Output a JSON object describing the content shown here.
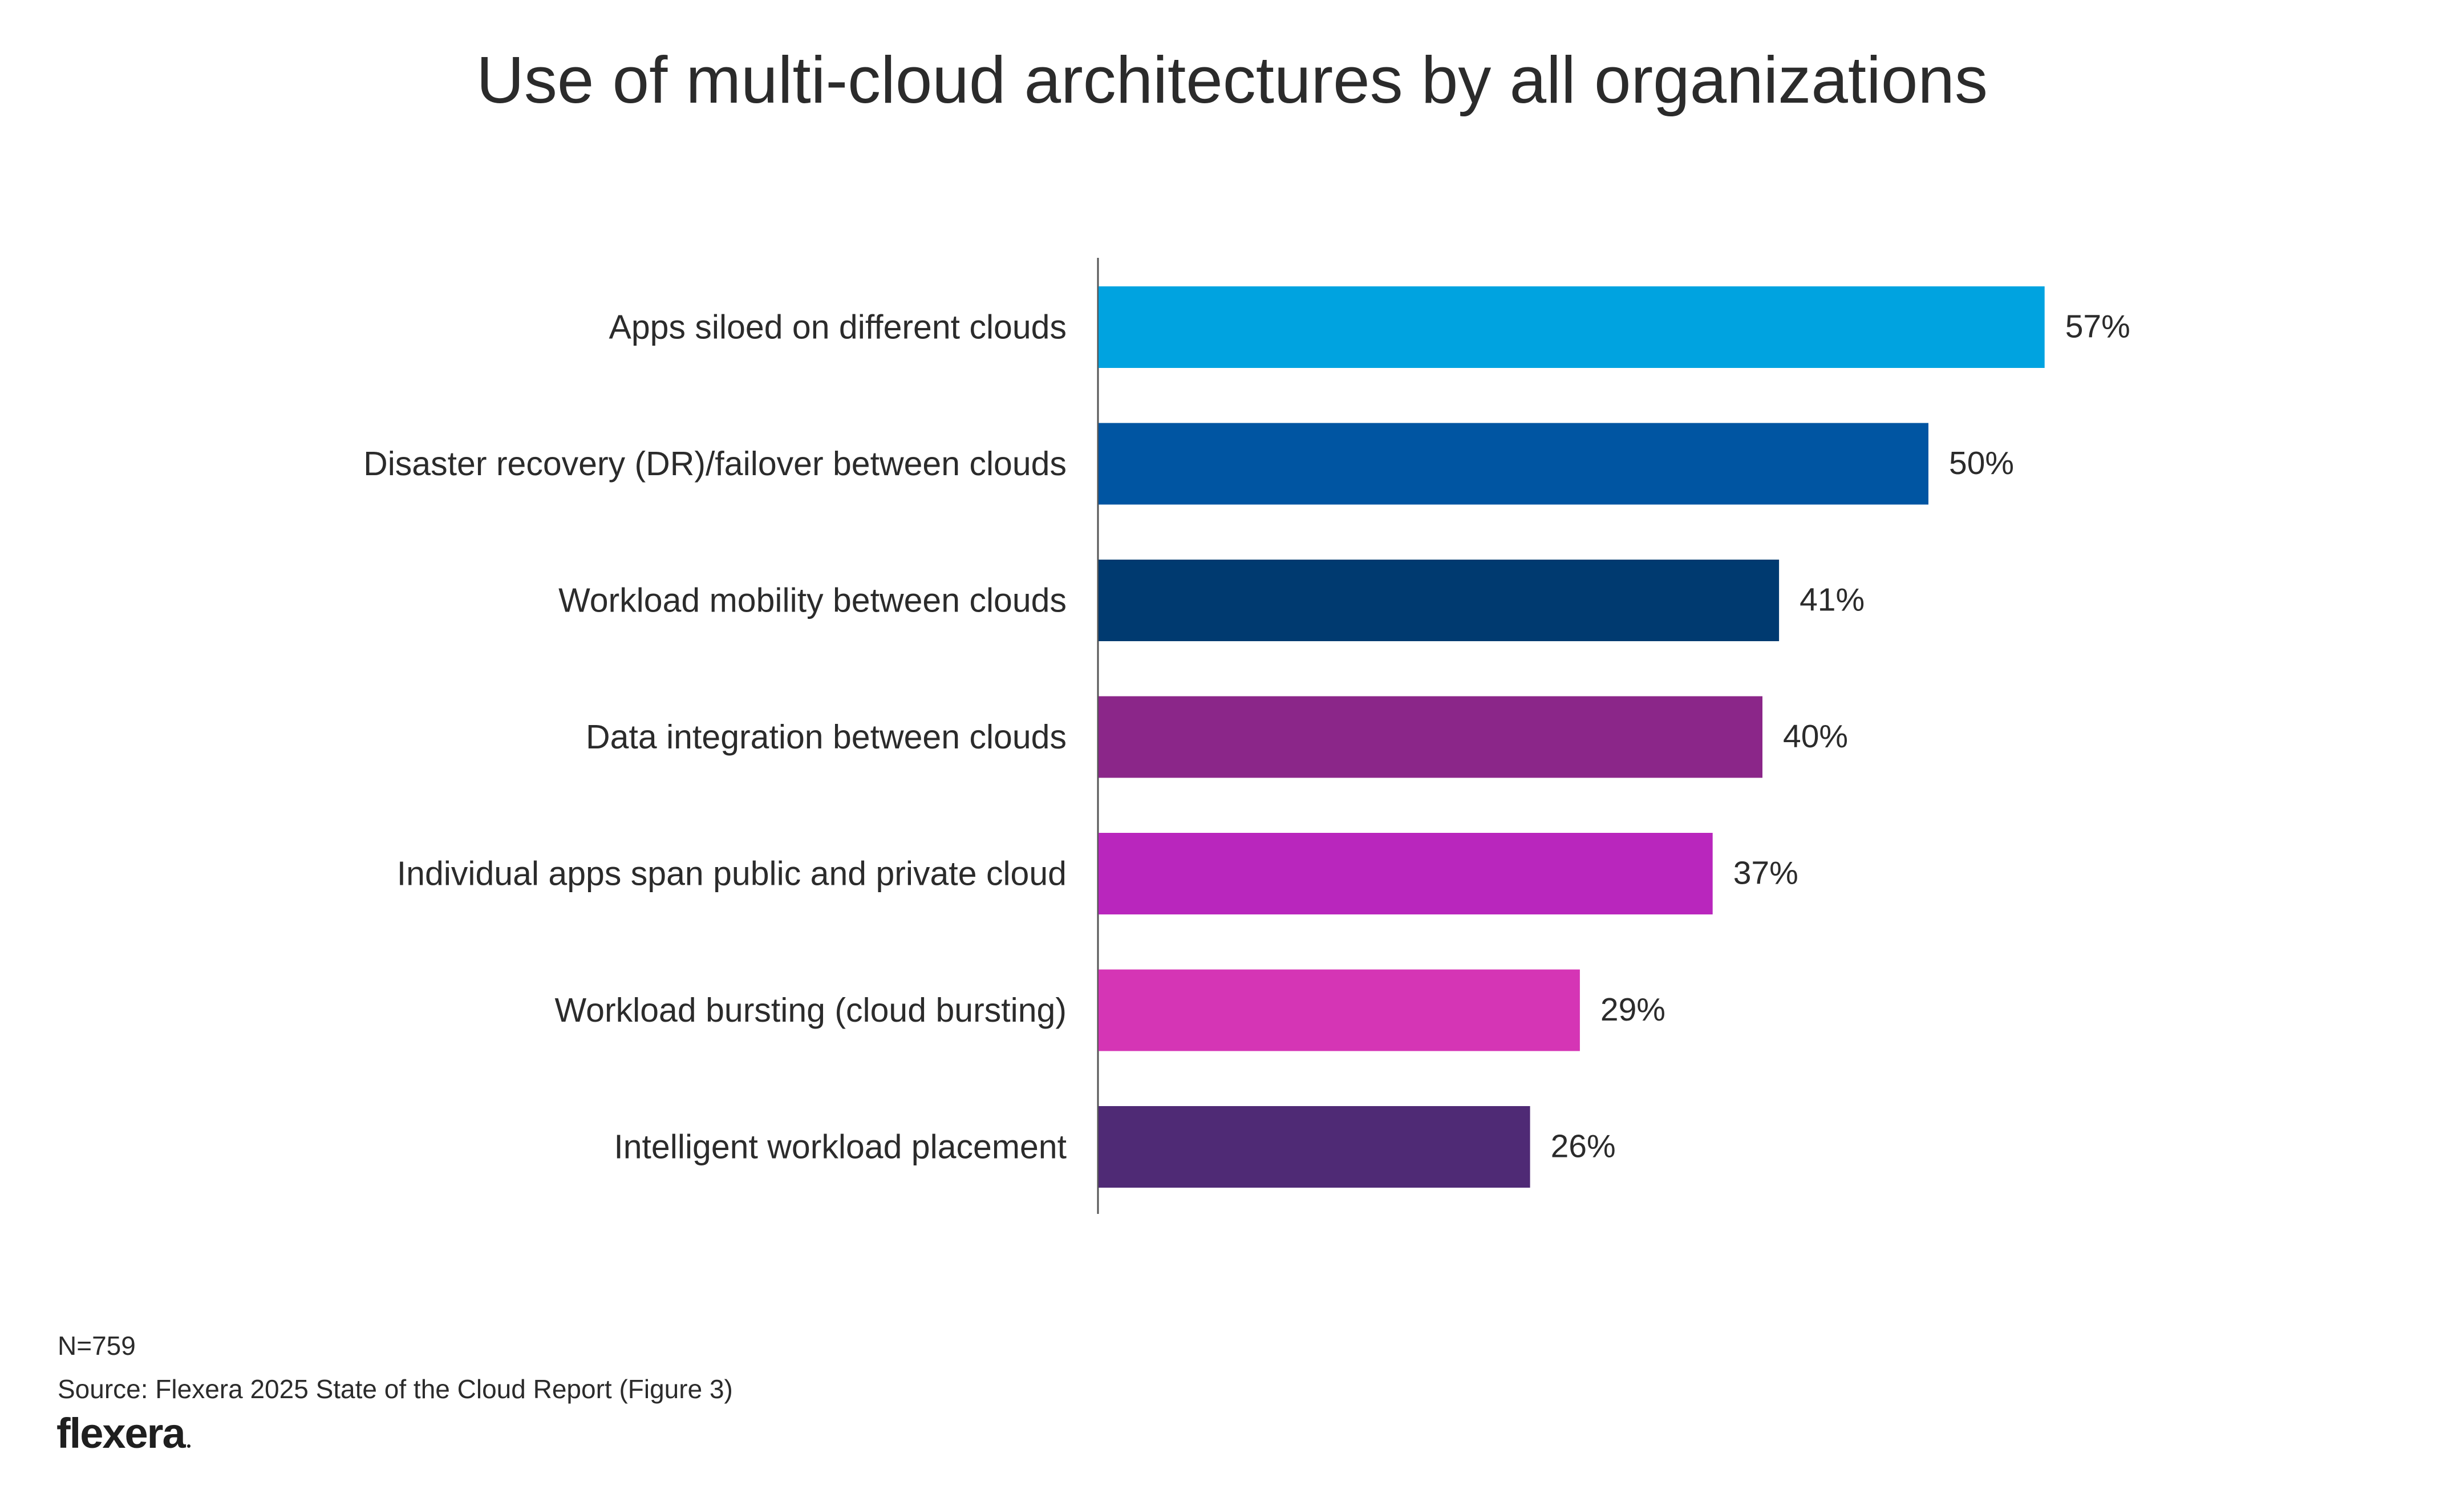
{
  "chart_data": {
    "type": "bar",
    "orientation": "horizontal",
    "title": "Use of multi-cloud architectures by all organizations",
    "categories": [
      "Apps siloed on different clouds",
      "Disaster recovery (DR)/failover between clouds",
      "Workload mobility between clouds",
      "Data integration between clouds",
      "Individual apps span public and private cloud",
      "Workload bursting (cloud bursting)",
      "Intelligent workload placement"
    ],
    "values": [
      57,
      50,
      41,
      40,
      37,
      29,
      26
    ],
    "value_labels": [
      "57%",
      "50%",
      "41%",
      "40%",
      "37%",
      "29%",
      "26%"
    ],
    "bar_colors": [
      "#00a3e0",
      "#0055a2",
      "#003a70",
      "#8b2689",
      "#b926bd",
      "#d535b5",
      "#4f2a75"
    ],
    "xlim": [
      0,
      100
    ],
    "unit": "%",
    "grid": false,
    "legend": "none"
  },
  "footer": {
    "n": "N=759",
    "source": "Source: Flexera 2025 State of the Cloud Report (Figure 3)"
  },
  "logo": {
    "text": "flexera"
  }
}
